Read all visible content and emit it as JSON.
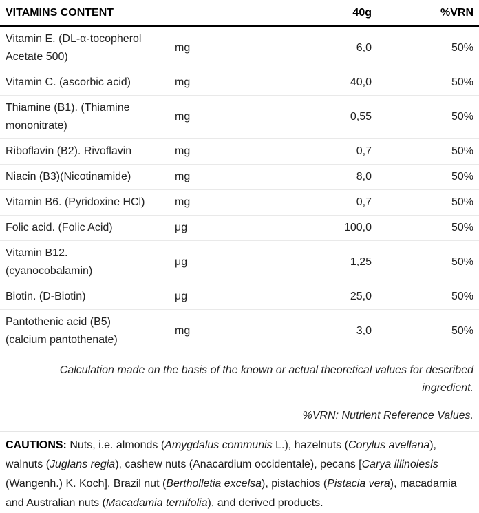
{
  "table": {
    "header": {
      "title": "VITAMINS CONTENT",
      "amount_col": "40g",
      "vrn_col": "%VRN"
    },
    "rows": [
      {
        "name": "Vitamin E. (DL-α-tocopherol Acetate 500)",
        "unit": "mg",
        "value": "6,0",
        "vrn": "50%"
      },
      {
        "name": "Vitamin C. (ascorbic acid)",
        "unit": "mg",
        "value": "40,0",
        "vrn": "50%"
      },
      {
        "name": "Thiamine (B1). (Thiamine mononitrate)",
        "unit": "mg",
        "value": "0,55",
        "vrn": "50%"
      },
      {
        "name": "Riboflavin (B2). Rivoflavin",
        "unit": "mg",
        "value": "0,7",
        "vrn": "50%"
      },
      {
        "name": "Niacin (B3)(Nicotinamide)",
        "unit": "mg",
        "value": "8,0",
        "vrn": "50%"
      },
      {
        "name": "Vitamin B6. (Pyridoxine HCl)",
        "unit": "mg",
        "value": "0,7",
        "vrn": "50%"
      },
      {
        "name": "Folic acid. (Folic Acid)",
        "unit": "μg",
        "value": "100,0",
        "vrn": "50%"
      },
      {
        "name": "Vitamin B12. (cyanocobalamin)",
        "unit": "μg",
        "value": "1,25",
        "vrn": "50%"
      },
      {
        "name": "Biotin. (D-Biotin)",
        "unit": "μg",
        "value": "25,0",
        "vrn": "50%"
      },
      {
        "name": "Pantothenic acid (B5)(calcium pantothenate)",
        "unit": "mg",
        "value": "3,0",
        "vrn": "50%"
      }
    ]
  },
  "footnotes": {
    "calculation": "Calculation made on the basis of the known or actual theoretical values for described ingredient.",
    "vrn_definition": "%VRN: Nutrient Reference Values."
  },
  "cautions": {
    "segments": [
      {
        "text": "CAUTIONS: ",
        "style": "bold"
      },
      {
        "text": "Nuts, i.e. almonds (",
        "style": "normal"
      },
      {
        "text": "Amygdalus communis",
        "style": "italic"
      },
      {
        "text": " L.), hazelnuts (",
        "style": "normal"
      },
      {
        "text": "Corylus avellana",
        "style": "italic"
      },
      {
        "text": "), walnuts (",
        "style": "normal"
      },
      {
        "text": "Juglans regia",
        "style": "italic"
      },
      {
        "text": "), cashew nuts (Anacardium occidentale), pecans [",
        "style": "normal"
      },
      {
        "text": "Carya illinoiesis",
        "style": "italic"
      },
      {
        "text": " (Wangenh.) K. Koch], Brazil nut (",
        "style": "normal"
      },
      {
        "text": "Bertholletia excelsa",
        "style": "italic"
      },
      {
        "text": "), pistachios (",
        "style": "normal"
      },
      {
        "text": "Pistacia vera",
        "style": "italic"
      },
      {
        "text": "), macadamia and Australian nuts (",
        "style": "normal"
      },
      {
        "text": "Macadamia ternifolia",
        "style": "italic"
      },
      {
        "text": "), and derived products.",
        "style": "normal"
      }
    ]
  },
  "colors": {
    "header_border": "#000000",
    "row_border": "#e9e9e9",
    "text": "#222222"
  }
}
